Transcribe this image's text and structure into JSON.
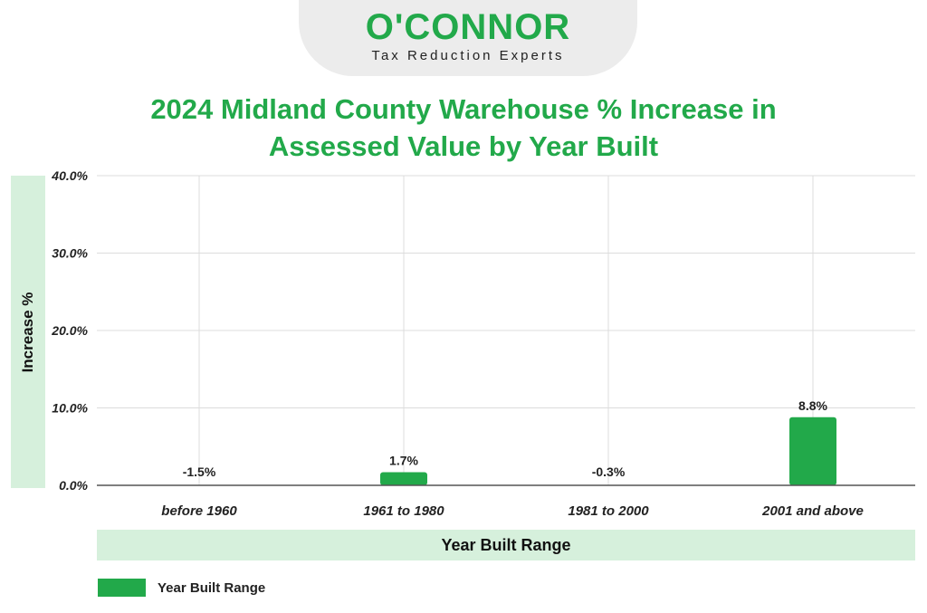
{
  "brand": {
    "name": "O'CONNOR",
    "tagline": "Tax Reduction Experts"
  },
  "colors": {
    "accent": "#22a94a",
    "label_band": "#d6f0dc"
  },
  "chart_data": {
    "type": "bar",
    "title_line1": "2024 Midland County Warehouse % Increase in",
    "title_line2": "Assessed Value by Year Built",
    "xlabel": "Year Built Range",
    "ylabel": "Increase %",
    "categories": [
      "before 1960",
      "1961 to 1980",
      "1981 to 2000",
      "2001 and above"
    ],
    "series": [
      {
        "name": "Year Built Range",
        "values": [
          -1.5,
          1.7,
          -0.3,
          8.8
        ]
      }
    ],
    "data_labels": [
      "-1.5%",
      "1.7%",
      "-0.3%",
      "8.8%"
    ],
    "ylim": [
      0,
      40
    ],
    "yticks": [
      0,
      10,
      20,
      30,
      40
    ],
    "ytick_labels": [
      "0.0%",
      "10.0%",
      "20.0%",
      "30.0%",
      "40.0%"
    ],
    "grid": true,
    "legend_position": "bottom-left"
  }
}
